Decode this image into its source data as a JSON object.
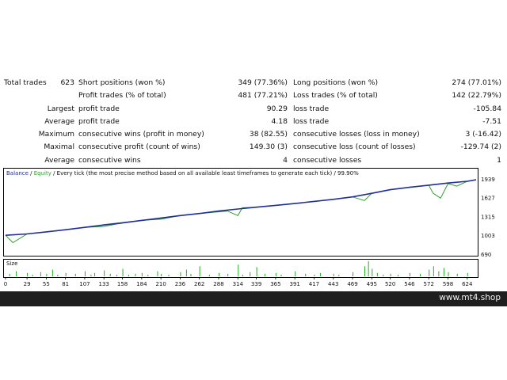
{
  "stats": {
    "row1": {
      "label1": "Total trades",
      "value1": "623",
      "label2": "Short positions (won %)",
      "value2": "349 (77.36%)",
      "label3": "Long positions (won %)",
      "value3": "274 (77.01%)"
    },
    "row2": {
      "label2": "Profit trades (% of total)",
      "value2": "481 (77.21%)",
      "label3": "Loss trades (% of total)",
      "value3": "142 (22.79%)"
    },
    "row3": {
      "label1": "Largest",
      "label2": "profit trade",
      "value2": "90.29",
      "label3": "loss trade",
      "value3": "-105.84"
    },
    "row4": {
      "label1": "Average",
      "label2": "profit trade",
      "value2": "4.18",
      "label3": "loss trade",
      "value3": "-7.51"
    },
    "row5": {
      "label1": "Maximum",
      "label2": "consecutive wins (profit in money)",
      "value2": "38 (82.55)",
      "label3": "consecutive losses (loss in money)",
      "value3": "3 (-16.42)"
    },
    "row6": {
      "label1": "Maximal",
      "label2": "consecutive profit (count of wins)",
      "value2": "149.30 (3)",
      "label3": "consecutive loss (count of losses)",
      "value3": "-129.74 (2)"
    },
    "row7": {
      "label1": "Average",
      "label2": "consecutive wins",
      "value2": "4",
      "label3": "consecutive losses",
      "value3": "1"
    }
  },
  "chart": {
    "legend_balance": "Balance",
    "legend_sep1": " / ",
    "legend_equity": "Equity",
    "legend_rest": " / Every tick (the most precise method based on all available least timeframes to generate each tick) / 99.90%",
    "size_label": "Size",
    "colors": {
      "balance": "#1f2f9a",
      "equity": "#2e9e2e",
      "volume": "#22b022",
      "frame": "#000000"
    }
  },
  "chart_data": {
    "type": "line",
    "title": "",
    "xlabel": "",
    "ylabel": "",
    "xlim": [
      0,
      636
    ],
    "ylim": [
      690,
      1939
    ],
    "y_ticks": [
      1939,
      1627,
      1315,
      1003,
      690
    ],
    "x_ticks": [
      0,
      29,
      55,
      81,
      107,
      133,
      158,
      184,
      210,
      236,
      262,
      288,
      314,
      339,
      365,
      391,
      417,
      443,
      469,
      495,
      520,
      546,
      572,
      598,
      624
    ],
    "series": [
      {
        "name": "Balance",
        "x": [
          0,
          29,
          55,
          81,
          107,
          133,
          158,
          184,
          210,
          236,
          262,
          288,
          314,
          339,
          365,
          391,
          417,
          443,
          469,
          495,
          520,
          546,
          572,
          598,
          624,
          636
        ],
        "y": [
          1003,
          1025,
          1060,
          1095,
          1135,
          1175,
          1210,
          1250,
          1290,
          1330,
          1365,
          1405,
          1440,
          1470,
          1500,
          1530,
          1565,
          1600,
          1640,
          1700,
          1760,
          1800,
          1835,
          1870,
          1900,
          1925
        ]
      },
      {
        "name": "Equity",
        "x": [
          0,
          10,
          29,
          55,
          81,
          107,
          133,
          150,
          184,
          210,
          236,
          262,
          300,
          314,
          320,
          339,
          365,
          391,
          417,
          443,
          469,
          485,
          495,
          520,
          546,
          572,
          578,
          588,
          598,
          610,
          624,
          636
        ],
        "y": [
          1003,
          880,
          1025,
          1060,
          1095,
          1135,
          1150,
          1190,
          1250,
          1270,
          1330,
          1365,
          1405,
          1330,
          1460,
          1470,
          1500,
          1530,
          1565,
          1600,
          1640,
          1580,
          1700,
          1760,
          1800,
          1835,
          1700,
          1620,
          1860,
          1820,
          1900,
          1925
        ]
      },
      {
        "name": "Size",
        "x": [
          5,
          14,
          29,
          36,
          47,
          55,
          63,
          70,
          81,
          94,
          107,
          115,
          120,
          133,
          141,
          150,
          158,
          166,
          175,
          184,
          192,
          205,
          210,
          220,
          236,
          244,
          250,
          262,
          275,
          288,
          300,
          314,
          320,
          330,
          339,
          350,
          365,
          372,
          391,
          405,
          417,
          425,
          443,
          450,
          469,
          485,
          490,
          495,
          502,
          510,
          520,
          530,
          546,
          560,
          572,
          578,
          585,
          592,
          598,
          610,
          624
        ],
        "y": [
          3,
          6,
          4,
          2,
          5,
          3,
          8,
          2,
          4,
          3,
          6,
          2,
          4,
          7,
          3,
          2,
          9,
          2,
          3,
          4,
          2,
          6,
          3,
          2,
          5,
          8,
          3,
          12,
          2,
          4,
          3,
          14,
          2,
          5,
          11,
          3,
          4,
          2,
          6,
          3,
          2,
          4,
          3,
          2,
          5,
          12,
          18,
          9,
          4,
          2,
          3,
          2,
          4,
          3,
          8,
          12,
          6,
          10,
          5,
          3,
          4
        ]
      }
    ]
  },
  "watermark": "www.mt4.shop"
}
